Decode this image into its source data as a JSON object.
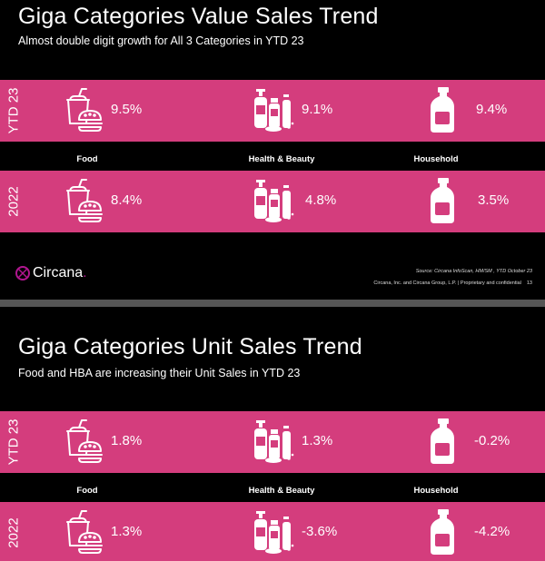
{
  "slide1": {
    "title": "Giga Categories Value Sales Trend",
    "subtitle": "Almost double digit growth for All 3 Categories in YTD 23",
    "rows": [
      {
        "year": "YTD 23",
        "food": "9.5%",
        "health_beauty": "9.1%",
        "household": "9.4%"
      },
      {
        "year": "2022",
        "food": "8.4%",
        "health_beauty": "4.8%",
        "household": "3.5%"
      }
    ],
    "categories": {
      "food": "Food",
      "health_beauty": "Health & Beauty",
      "household": "Household"
    },
    "logo": "Circana",
    "logo_suffix": ".",
    "source": "Source: Circana InfoScan, HM/SM , YTD October 23",
    "legal": "Circana, Inc. and Circana Group, L.P. | Proprietary and confidential",
    "page_number": "13"
  },
  "slide2": {
    "title": "Giga Categories Unit Sales Trend",
    "subtitle": "Food and HBA are increasing their Unit Sales in YTD 23",
    "rows": [
      {
        "year": "YTD 23",
        "food": "1.8%",
        "health_beauty": "1.3%",
        "household": "-0.2%"
      },
      {
        "year": "2022",
        "food": "1.3%",
        "health_beauty": "-3.6%",
        "household": "-4.2%"
      }
    ],
    "categories": {
      "food": "Food",
      "health_beauty": "Health & Beauty",
      "household": "Household"
    }
  },
  "colors": {
    "band": "#d43d7d",
    "background": "#000000",
    "icon": "#ffffff",
    "logo_accent": "#b0168f"
  },
  "icons": {
    "food": "fast-food-icon",
    "health_beauty": "health-beauty-bottles-icon",
    "household": "detergent-bottle-icon"
  }
}
